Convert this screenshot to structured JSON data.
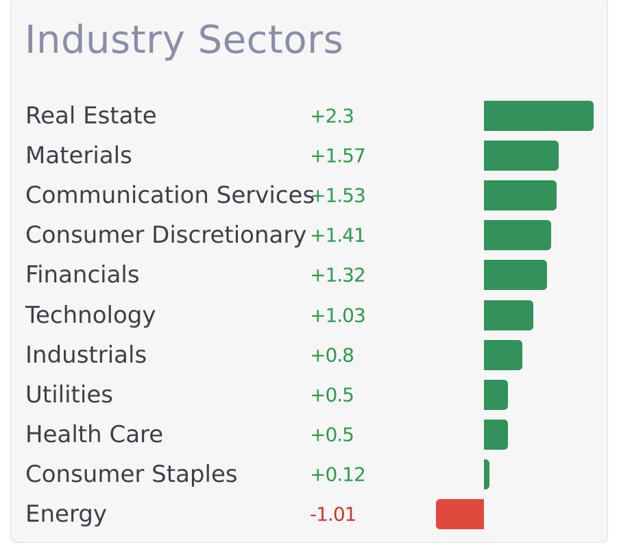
{
  "chart_data": {
    "type": "bar",
    "orientation": "horizontal",
    "title": "Industry Sectors",
    "categories": [
      "Real Estate",
      "Materials",
      "Communication Services",
      "Consumer Discretionary",
      "Financials",
      "Technology",
      "Industrials",
      "Utilities",
      "Health Care",
      "Consumer Staples",
      "Energy"
    ],
    "values": [
      2.3,
      1.57,
      1.53,
      1.41,
      1.32,
      1.03,
      0.8,
      0.5,
      0.5,
      0.12,
      -1.01
    ],
    "value_labels": [
      "+2.3",
      "+1.57",
      "+1.53",
      "+1.41",
      "+1.32",
      "+1.03",
      "+0.8",
      "+0.5",
      "+0.5",
      "+0.12",
      "-1.01"
    ],
    "xlim": [
      -1.01,
      2.3
    ],
    "grid": false,
    "legend": "none"
  },
  "colors": {
    "positive": "#32925a",
    "negative": "#e04a3c",
    "positive_text": "#2e9a4a",
    "negative_text": "#c8382c",
    "title": "#8a8ea8",
    "label": "#3c4048",
    "card_background": "#f6f6f6"
  }
}
